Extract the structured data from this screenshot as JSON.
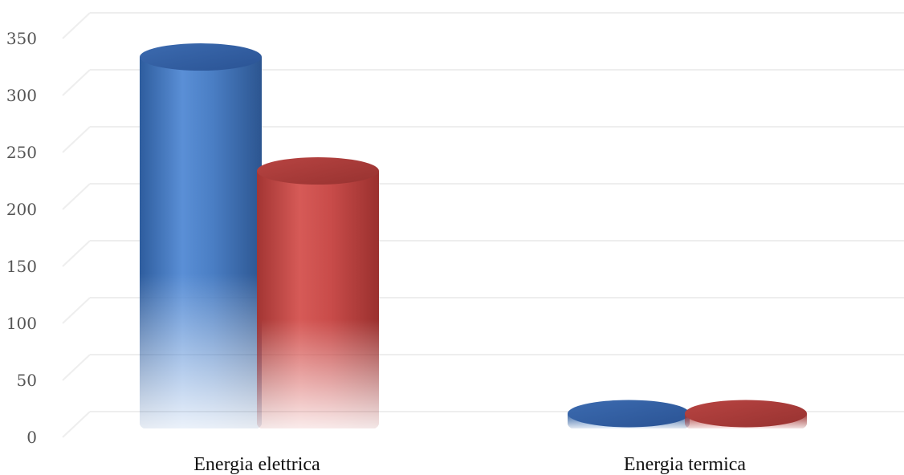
{
  "chart_data": {
    "type": "bar",
    "style": "3d-cylinder",
    "categories": [
      "Energia elettrica",
      "Energia termica"
    ],
    "series": [
      {
        "color": "#4a7ec4",
        "values": [
          338,
          25
        ]
      },
      {
        "color": "#c94c4a",
        "values": [
          238,
          25
        ]
      }
    ],
    "ylim": [
      0,
      350
    ],
    "yticks": [
      0,
      50,
      100,
      150,
      200,
      250,
      300,
      350
    ],
    "ytick_labels": [
      "0",
      "50",
      "100",
      "150",
      "200",
      "250",
      "300",
      "350"
    ],
    "grid": true,
    "legend": "none"
  }
}
